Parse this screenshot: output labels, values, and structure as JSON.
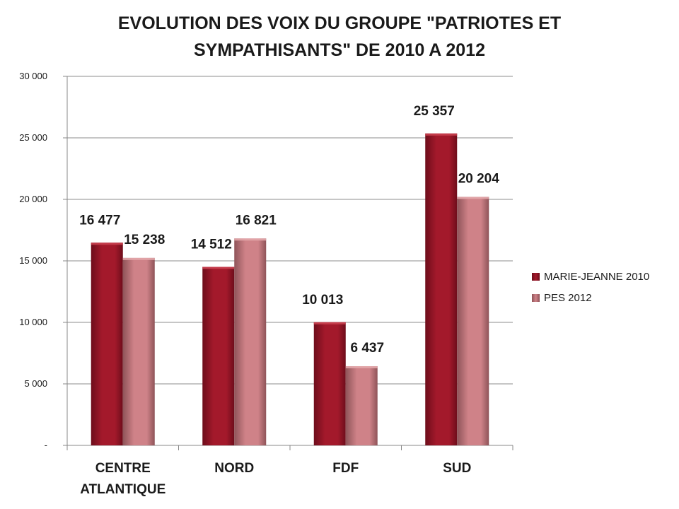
{
  "colors": {
    "series_1": "#a3192b",
    "series_1_dark": "#6e0d1b",
    "series_2": "#cf8288",
    "series_2_dark": "#8f5459",
    "axis": "#888888",
    "grid": "#8c8c8c",
    "text": "#1a1a1a"
  },
  "chart_data": {
    "type": "bar",
    "title_lines": [
      "EVOLUTION DES VOIX DU GROUPE \"PATRIOTES ET",
      "SYMPATHISANTS\" DE 2010 A 2012"
    ],
    "categories": [
      "CENTRE ATLANTIQUE",
      "NORD",
      "FDF",
      "SUD"
    ],
    "category_label_lines": [
      [
        "CENTRE",
        "ATLANTIQUE"
      ],
      [
        "NORD"
      ],
      [
        "FDF"
      ],
      [
        "SUD"
      ]
    ],
    "series": [
      {
        "name": "MARIE-JEANNE 2010",
        "values": [
          16477,
          14512,
          10013,
          25357
        ],
        "labels": [
          "16 477",
          "14 512",
          "10 013",
          "25 357"
        ]
      },
      {
        "name": "PES 2012",
        "values": [
          15238,
          16821,
          6437,
          20204
        ],
        "labels": [
          "15 238",
          "16 821",
          "6 437",
          "20 204"
        ]
      }
    ],
    "ylim": [
      0,
      30000
    ],
    "y_ticks": [
      0,
      5000,
      10000,
      15000,
      20000,
      25000,
      30000
    ],
    "y_tick_labels": [
      "-",
      "5 000",
      "10 000",
      "15 000",
      "20 000",
      "25 000",
      "30 000"
    ],
    "grid": true,
    "legend_position": "right"
  }
}
